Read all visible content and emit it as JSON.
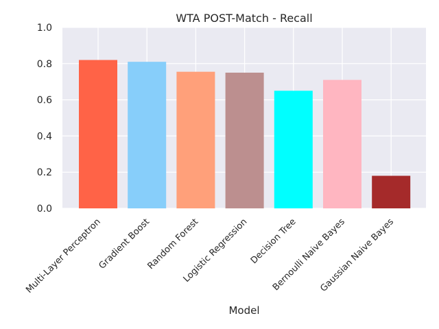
{
  "chart_data": {
    "type": "bar",
    "title": "WTA POST-Match - Recall",
    "xlabel": "Model",
    "ylabel": "",
    "ylim": [
      0,
      1.0
    ],
    "yticks": [
      0.0,
      0.2,
      0.4,
      0.6,
      0.8,
      1.0
    ],
    "ytick_labels": [
      "0.0",
      "0.2",
      "0.4",
      "0.6",
      "0.8",
      "1.0"
    ],
    "grid": true,
    "background": "#eaeaf2",
    "grid_color": "#ffffff",
    "categories": [
      "Multi-Layer Perceptron",
      "Gradient Boost",
      "Random Forest",
      "Logistic Regression",
      "Decision Tree",
      "Bernoulli Naive Bayes",
      "Gaussian Naive Bayes"
    ],
    "values": [
      0.82,
      0.81,
      0.755,
      0.75,
      0.65,
      0.71,
      0.18
    ],
    "colors": [
      "#ff6347",
      "#87cefa",
      "#ffa07a",
      "#bc8f8f",
      "#00ffff",
      "#ffb6c1",
      "#a52a2a"
    ]
  }
}
